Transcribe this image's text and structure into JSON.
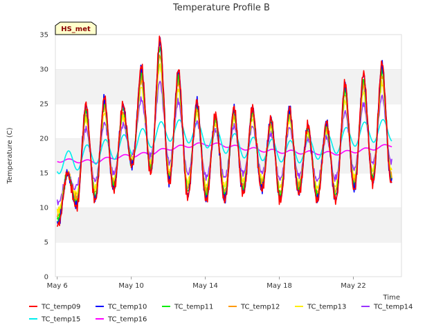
{
  "chart_data": {
    "type": "line",
    "title": "Temperature Profile B",
    "xlabel": "Time",
    "ylabel": "Temperature (C)",
    "badge": "HS_met",
    "x_start_day": 6,
    "x_end_day": 24.1,
    "ylim": [
      0,
      35
    ],
    "yticks": [
      0,
      5,
      10,
      15,
      20,
      25,
      30,
      35
    ],
    "xticks": [
      {
        "value": 6,
        "label": "May 6"
      },
      {
        "value": 10,
        "label": "May 10"
      },
      {
        "value": 14,
        "label": "May 14"
      },
      {
        "value": 18,
        "label": "May 18"
      },
      {
        "value": 22,
        "label": "May 22"
      }
    ],
    "grid": "horizontal bands",
    "legend_position": "bottom",
    "daily_peaks": [
      {
        "day": 6,
        "peak": 15
      },
      {
        "day": 7,
        "peak": 25
      },
      {
        "day": 8,
        "peak": 26
      },
      {
        "day": 9,
        "peak": 25
      },
      {
        "day": 10,
        "peak": 30.5
      },
      {
        "day": 11,
        "peak": 34.5
      },
      {
        "day": 12,
        "peak": 30
      },
      {
        "day": 13,
        "peak": 25.5
      },
      {
        "day": 14,
        "peak": 23.5
      },
      {
        "day": 15,
        "peak": 24.5
      },
      {
        "day": 16,
        "peak": 24.5
      },
      {
        "day": 17,
        "peak": 23
      },
      {
        "day": 18,
        "peak": 24.5
      },
      {
        "day": 19,
        "peak": 22
      },
      {
        "day": 20,
        "peak": 22.5
      },
      {
        "day": 21,
        "peak": 28
      },
      {
        "day": 22,
        "peak": 29.5
      },
      {
        "day": 23,
        "peak": 31
      }
    ],
    "daily_troughs": [
      {
        "day": 6,
        "trough": 7.5
      },
      {
        "day": 7,
        "trough": 10
      },
      {
        "day": 8,
        "trough": 11
      },
      {
        "day": 9,
        "trough": 12.5
      },
      {
        "day": 10,
        "trough": 16
      },
      {
        "day": 11,
        "trough": 15
      },
      {
        "day": 12,
        "trough": 13.5
      },
      {
        "day": 13,
        "trough": 11.5
      },
      {
        "day": 14,
        "trough": 11
      },
      {
        "day": 15,
        "trough": 11
      },
      {
        "day": 16,
        "trough": 12
      },
      {
        "day": 17,
        "trough": 12.5
      },
      {
        "day": 18,
        "trough": 11
      },
      {
        "day": 19,
        "trough": 12
      },
      {
        "day": 20,
        "trough": 11
      },
      {
        "day": 21,
        "trough": 11
      },
      {
        "day": 22,
        "trough": 12.5
      },
      {
        "day": 23,
        "trough": 13.5
      }
    ],
    "slow_series": {
      "TC_temp16": [
        [
          6.5,
          16.8
        ],
        [
          8,
          16.6
        ],
        [
          9,
          17.2
        ],
        [
          10,
          17.5
        ],
        [
          11,
          17.8
        ],
        [
          12,
          18.5
        ],
        [
          13,
          18.9
        ],
        [
          14,
          19.2
        ],
        [
          15,
          19.0
        ],
        [
          16,
          18.6
        ],
        [
          17,
          18.3
        ],
        [
          18,
          18.1
        ],
        [
          19,
          18.0
        ],
        [
          20,
          17.9
        ],
        [
          21,
          17.8
        ],
        [
          22,
          18.1
        ],
        [
          23,
          18.5
        ],
        [
          24,
          19.0
        ]
      ],
      "TC_temp15": [
        [
          6.5,
          16.5
        ],
        [
          8,
          17.8
        ],
        [
          9,
          18.5
        ],
        [
          10,
          19.2
        ],
        [
          11,
          20.2
        ],
        [
          12,
          21.2
        ],
        [
          13,
          21.0
        ],
        [
          14,
          20.3
        ],
        [
          15,
          19.5
        ],
        [
          16,
          18.8
        ],
        [
          17,
          18.4
        ],
        [
          18,
          18.2
        ],
        [
          19,
          18.0
        ],
        [
          20,
          18.5
        ],
        [
          21,
          19.3
        ],
        [
          22,
          20.4
        ],
        [
          23,
          21.0
        ],
        [
          24,
          21.2
        ]
      ]
    },
    "series": [
      {
        "name": "TC_temp09",
        "color": "#ff0000",
        "amp": 1.0
      },
      {
        "name": "TC_temp10",
        "color": "#0000ff",
        "amp": 0.97
      },
      {
        "name": "TC_temp11",
        "color": "#00ee00",
        "amp": 0.9
      },
      {
        "name": "TC_temp12",
        "color": "#ff9900",
        "amp": 0.82
      },
      {
        "name": "TC_temp13",
        "color": "#ffee00",
        "amp": 0.72
      },
      {
        "name": "TC_temp14",
        "color": "#9933ff",
        "amp": 0.55
      },
      {
        "name": "TC_temp15",
        "color": "#00eeee",
        "amp": 0.18
      },
      {
        "name": "TC_temp16",
        "color": "#ff00ff",
        "amp": 0.05
      }
    ]
  }
}
